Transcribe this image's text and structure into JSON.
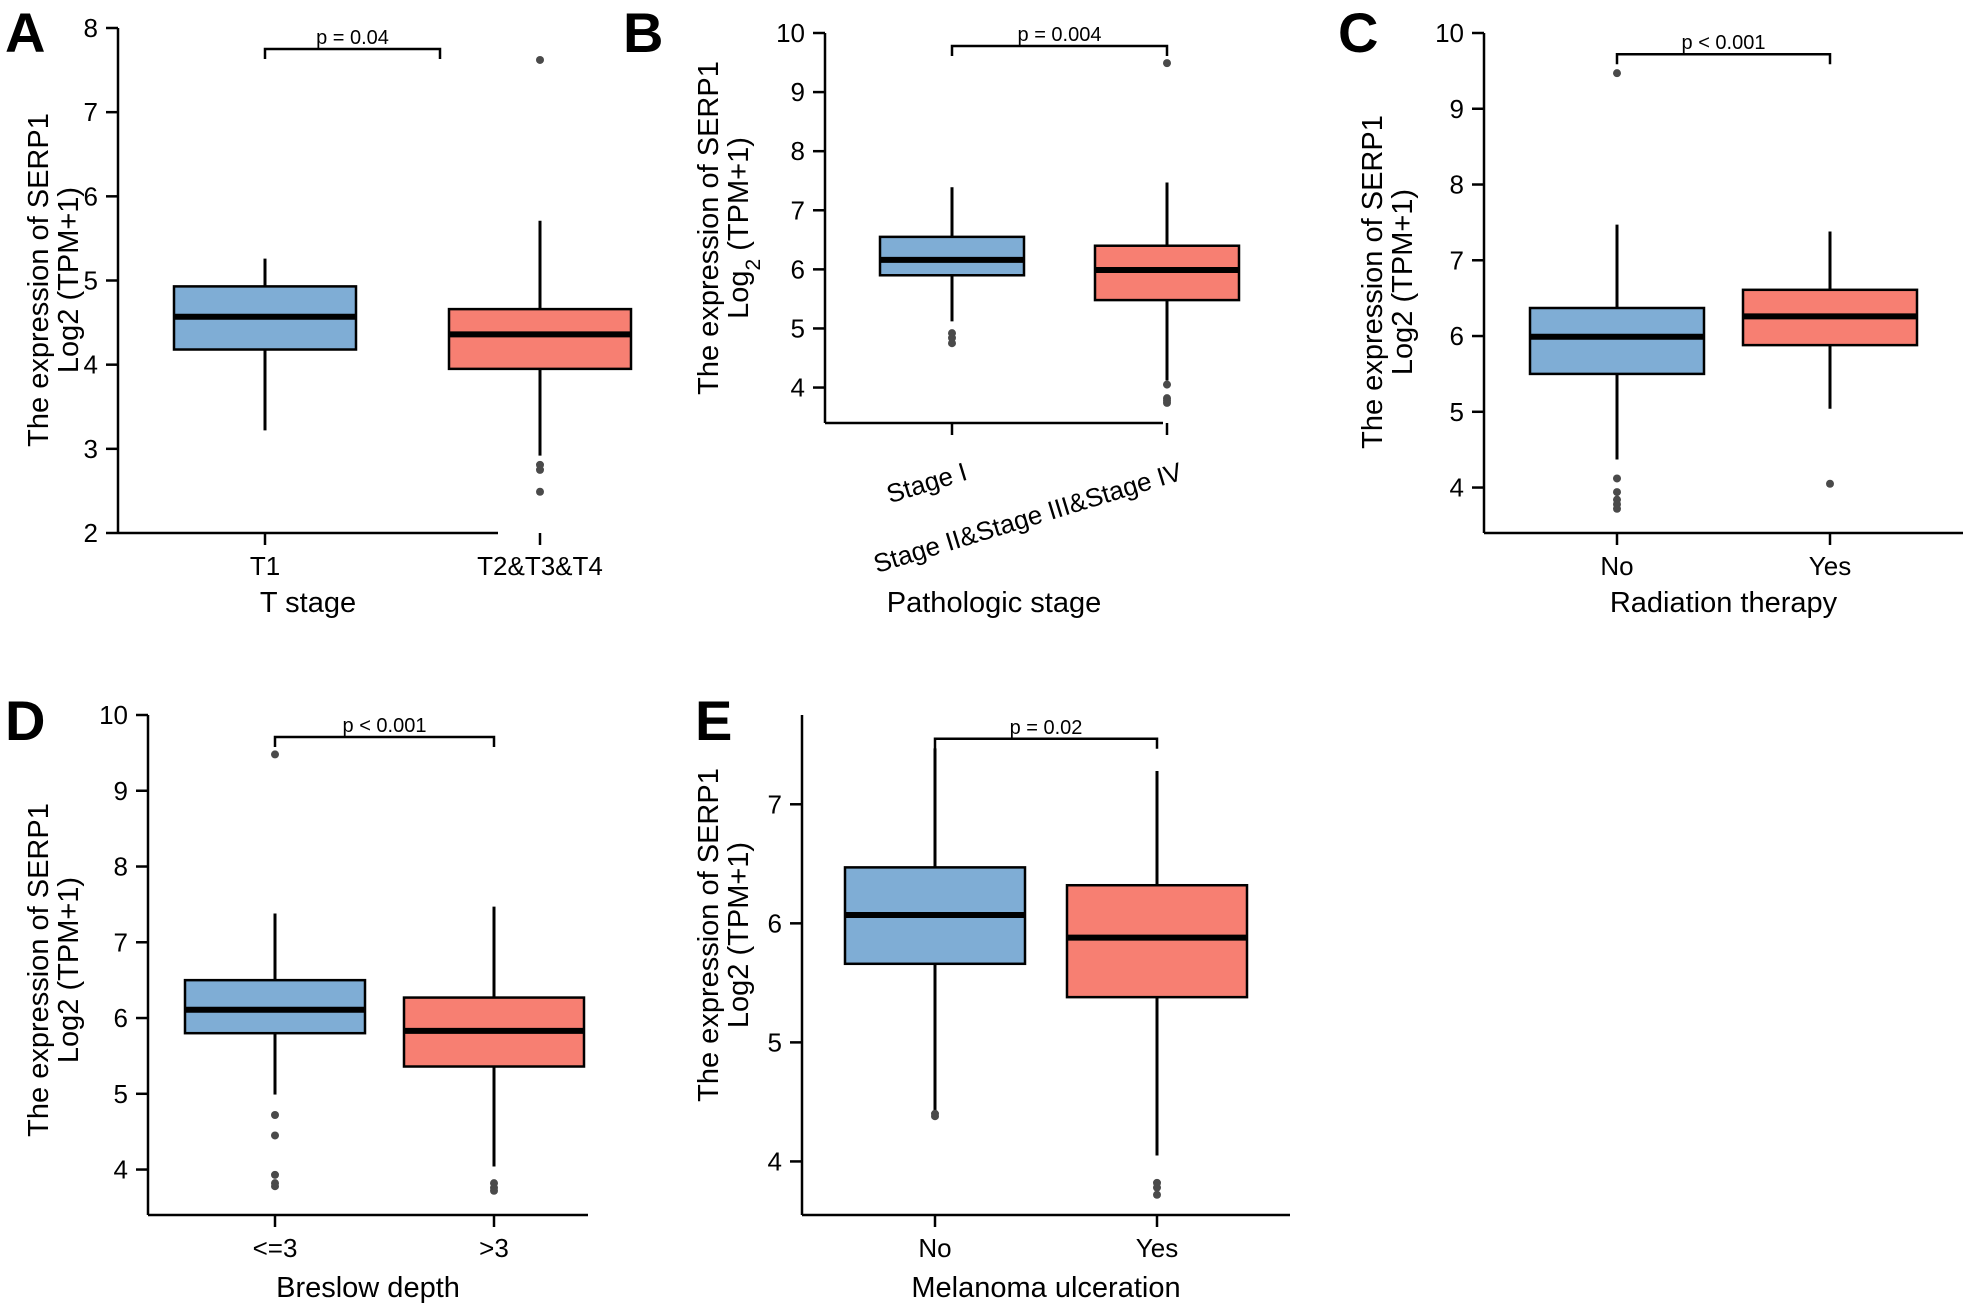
{
  "figure": {
    "box_colors": {
      "first": "#7fadd5",
      "second": "#f77f72"
    },
    "outlier_color": "#4a4a4a"
  },
  "chart_data": [
    {
      "panel_letter": "A",
      "type": "box",
      "xlabel": "T stage",
      "ylabel_line1": "The expression of SERP1",
      "ylabel_line2": "Log2 (TPM+1)",
      "ylim": [
        2,
        8
      ],
      "yticks": [
        2,
        3,
        4,
        5,
        6,
        7,
        8
      ],
      "categories": [
        "T1",
        "T2&T3&T4"
      ],
      "xtick_rotation": 0,
      "boxes": [
        {
          "q1": 4.18,
          "median": 4.57,
          "q3": 4.93,
          "whisker_low": 3.22,
          "whisker_high": 5.26,
          "outliers": []
        },
        {
          "q1": 3.95,
          "median": 4.36,
          "q3": 4.66,
          "whisker_low": 2.92,
          "whisker_high": 5.71,
          "outliers": [
            7.62,
            2.81,
            2.75,
            2.49
          ]
        }
      ],
      "significance": {
        "label": "p = 0.04",
        "y": 7.75
      }
    },
    {
      "panel_letter": "B",
      "type": "box",
      "xlabel": "Pathologic stage",
      "ylabel_line1": "The expression of SERP1",
      "ylabel_line2": "Log",
      "ylabel_line2_sub": "2",
      "ylabel_line2_rest": " (TPM+1)",
      "ylim": [
        3.4,
        10
      ],
      "yticks": [
        4,
        5,
        6,
        7,
        8,
        9,
        10
      ],
      "categories": [
        "Stage I",
        "Stage II&Stage III&Stage IV"
      ],
      "xtick_rotation": -17,
      "boxes": [
        {
          "q1": 5.9,
          "median": 6.16,
          "q3": 6.55,
          "whisker_low": 5.12,
          "whisker_high": 7.39,
          "outliers": [
            4.92,
            4.84,
            4.75
          ]
        },
        {
          "q1": 5.48,
          "median": 5.99,
          "q3": 6.4,
          "whisker_low": 4.12,
          "whisker_high": 7.47,
          "outliers": [
            9.49,
            4.05,
            3.82,
            3.78,
            3.74
          ]
        }
      ],
      "significance": {
        "label": "p = 0.004",
        "y": 9.78
      }
    },
    {
      "panel_letter": "C",
      "type": "box",
      "xlabel": "Radiation therapy",
      "ylabel_line1": "The expression of SERP1",
      "ylabel_line2": "Log2 (TPM+1)",
      "ylim": [
        3.4,
        10
      ],
      "yticks": [
        4,
        5,
        6,
        7,
        8,
        9,
        10
      ],
      "categories": [
        "No",
        "Yes"
      ],
      "xtick_rotation": 0,
      "boxes": [
        {
          "q1": 5.5,
          "median": 5.99,
          "q3": 6.37,
          "whisker_low": 4.37,
          "whisker_high": 7.47,
          "outliers": [
            9.47,
            4.12,
            3.94,
            3.84,
            3.78,
            3.72
          ]
        },
        {
          "q1": 5.88,
          "median": 6.26,
          "q3": 6.61,
          "whisker_low": 5.04,
          "whisker_high": 7.38,
          "outliers": [
            4.05
          ]
        }
      ],
      "significance": {
        "label": "p < 0.001",
        "y": 9.72
      }
    },
    {
      "panel_letter": "D",
      "type": "box",
      "xlabel": "Breslow depth",
      "ylabel_line1": "The expression of SERP1",
      "ylabel_line2": "Log2 (TPM+1)",
      "ylim": [
        3.4,
        10
      ],
      "yticks": [
        4,
        5,
        6,
        7,
        8,
        9,
        10
      ],
      "categories": [
        "<=3",
        ">3"
      ],
      "xtick_rotation": 0,
      "boxes": [
        {
          "q1": 5.8,
          "median": 6.11,
          "q3": 6.5,
          "whisker_low": 4.99,
          "whisker_high": 7.38,
          "outliers": [
            9.48,
            4.72,
            4.45,
            3.93,
            3.82,
            3.78
          ]
        },
        {
          "q1": 5.36,
          "median": 5.83,
          "q3": 6.27,
          "whisker_low": 4.04,
          "whisker_high": 7.47,
          "outliers": [
            3.82,
            3.76,
            3.72
          ]
        }
      ],
      "significance": {
        "label": "p < 0.001",
        "y": 9.71
      }
    },
    {
      "panel_letter": "E",
      "type": "box",
      "xlabel": "Melanoma ulceration",
      "ylabel_line1": "The expression of SERP1",
      "ylabel_line2": "Log2 (TPM+1)",
      "ylim": [
        3.55,
        7.75
      ],
      "yticks": [
        4,
        5,
        6,
        7
      ],
      "categories": [
        "No",
        "Yes"
      ],
      "xtick_rotation": 0,
      "boxes": [
        {
          "q1": 5.66,
          "median": 6.07,
          "q3": 6.47,
          "whisker_low": 4.43,
          "whisker_high": 7.47,
          "outliers": [
            4.4,
            4.38
          ]
        },
        {
          "q1": 5.38,
          "median": 5.88,
          "q3": 6.32,
          "whisker_low": 4.05,
          "whisker_high": 7.28,
          "outliers": [
            3.82,
            3.78,
            3.72
          ]
        }
      ],
      "significance": {
        "label": "p = 0.02",
        "y": 7.55
      }
    }
  ]
}
